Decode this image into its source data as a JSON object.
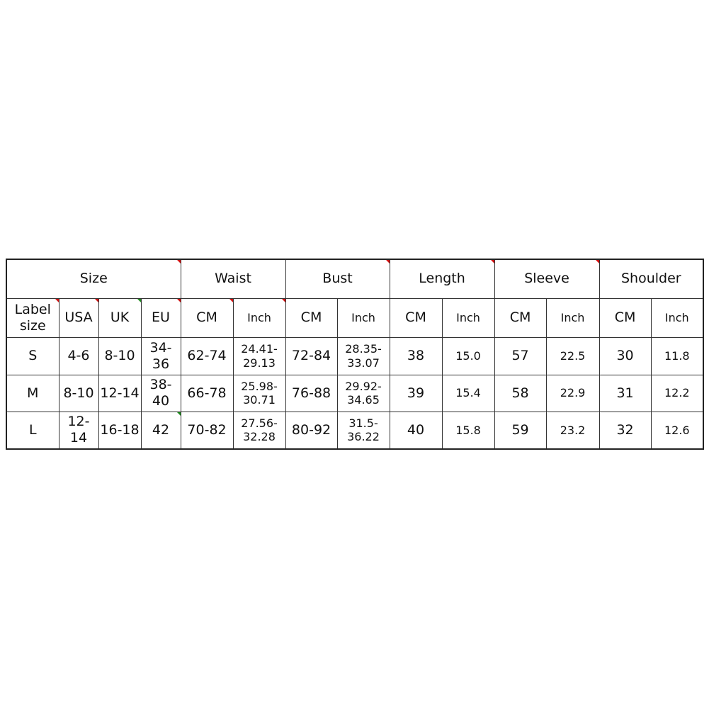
{
  "groups": [
    "Size",
    "Waist",
    "Bust",
    "Length",
    "Sleeve",
    "Shoulder"
  ],
  "subheaders": [
    "Label size",
    "USA",
    "UK",
    "EU",
    "CM",
    "Inch",
    "CM",
    "Inch",
    "CM",
    "Inch",
    "CM",
    "Inch",
    "CM",
    "Inch"
  ],
  "rows": [
    [
      "S",
      "4-6",
      "8-10",
      "34-36",
      "62-74",
      "24.41-29.13",
      "72-84",
      "28.35-33.07",
      "38",
      "15.0",
      "57",
      "22.5",
      "30",
      "11.8"
    ],
    [
      "M",
      "8-10",
      "12-14",
      "38-40",
      "66-78",
      "25.98-30.71",
      "76-88",
      "29.92-34.65",
      "39",
      "15.4",
      "58",
      "22.9",
      "31",
      "12.2"
    ],
    [
      "L",
      "12-14",
      "16-18",
      "42",
      "70-82",
      "27.56-32.28",
      "80-92",
      "31.5-36.22",
      "40",
      "15.8",
      "59",
      "23.2",
      "32",
      "12.6"
    ]
  ],
  "colors": {
    "border": "#333333",
    "comment_marker": "#d01010"
  }
}
